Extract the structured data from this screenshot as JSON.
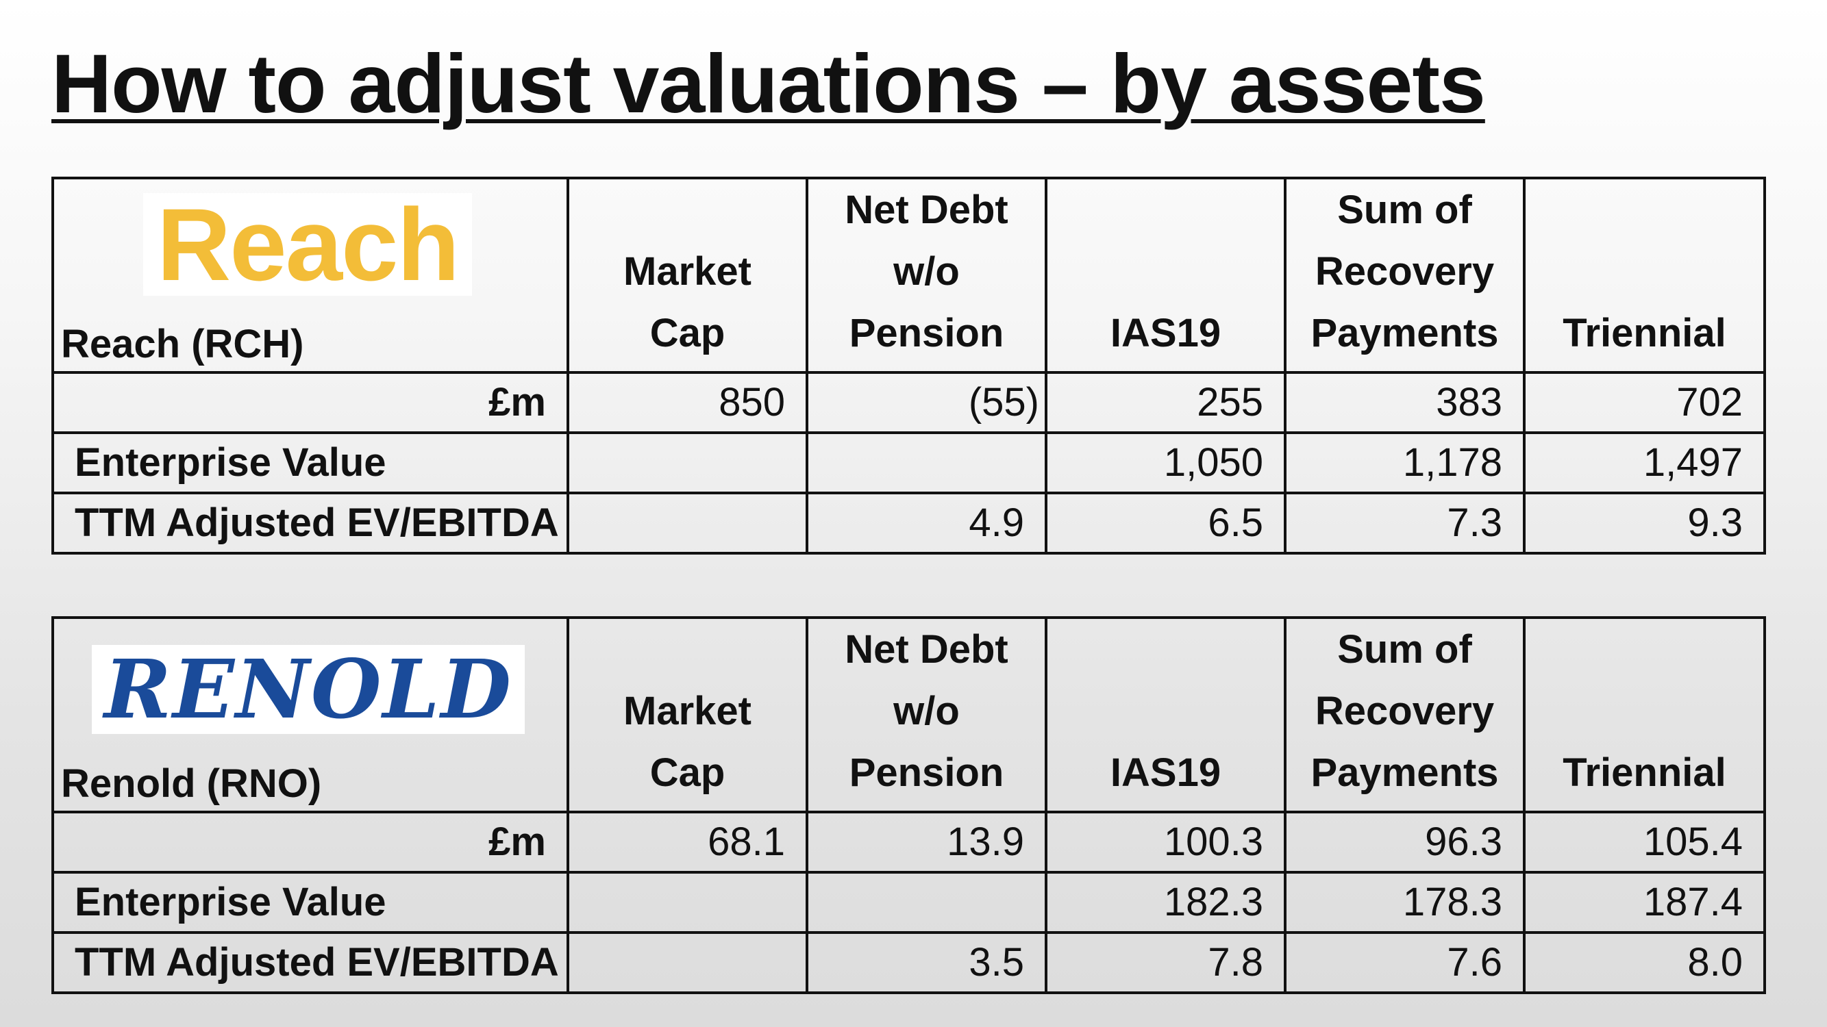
{
  "title": "How to adjust valuations – by assets",
  "colors": {
    "reach_logo": "#f3bd38",
    "renold_logo": "#1a4b9a"
  },
  "headers": {
    "market_cap": "Market Cap",
    "net_debt": [
      "Net Debt",
      "w/o",
      "Pension"
    ],
    "ias19": "IAS19",
    "recovery": [
      "Sum of",
      "Recovery",
      "Payments"
    ],
    "triennial": "Triennial"
  },
  "row_labels": {
    "unit": "£m",
    "ev": "Enterprise Value",
    "ttm": "TTM Adjusted EV/EBITDA"
  },
  "reach": {
    "logo_text": "Reach",
    "company": "Reach (RCH)",
    "fm": [
      "850",
      "(55)",
      "255",
      "383",
      "702"
    ],
    "ev": [
      "",
      "",
      "1,050",
      "1,178",
      "1,497"
    ],
    "ttm": [
      "",
      "4.9",
      "6.5",
      "7.3",
      "9.3"
    ]
  },
  "renold": {
    "logo_text": "RENOLD",
    "company": "Renold (RNO)",
    "fm": [
      "68.1",
      "13.9",
      "100.3",
      "96.3",
      "105.4"
    ],
    "ev": [
      "",
      "",
      "182.3",
      "178.3",
      "187.4"
    ],
    "ttm": [
      "",
      "3.5",
      "7.8",
      "7.6",
      "8.0"
    ]
  }
}
